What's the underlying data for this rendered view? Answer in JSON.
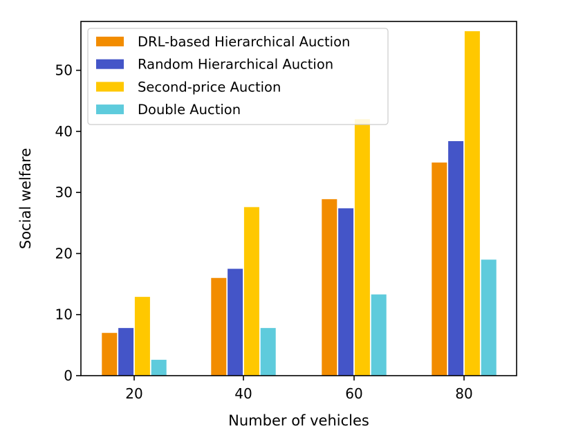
{
  "chart_data": {
    "type": "bar",
    "title": "",
    "xlabel": "Number of vehicles",
    "ylabel": "Social welfare",
    "categories": [
      "20",
      "40",
      "60",
      "80"
    ],
    "ylim": [
      0,
      58
    ],
    "yticks": [
      0,
      10,
      20,
      30,
      40,
      50
    ],
    "yticks_labels": [
      "0",
      "10",
      "20",
      "30",
      "40",
      "50"
    ],
    "grid": false,
    "legend_position": "top-left",
    "series": [
      {
        "name": "DRL-based Hierarchical Auction",
        "color": "#f28c00",
        "values": [
          7.0,
          16.0,
          28.9,
          34.9
        ]
      },
      {
        "name": "Random Hierarchical Auction",
        "color": "#4455c8",
        "values": [
          7.8,
          17.5,
          27.4,
          38.4
        ]
      },
      {
        "name": "Second-price Auction",
        "color": "#ffc800",
        "values": [
          12.9,
          27.6,
          42.0,
          56.4
        ]
      },
      {
        "name": "Double Auction",
        "color": "#5ecbdc",
        "values": [
          2.6,
          7.8,
          13.3,
          19.0
        ]
      }
    ]
  }
}
